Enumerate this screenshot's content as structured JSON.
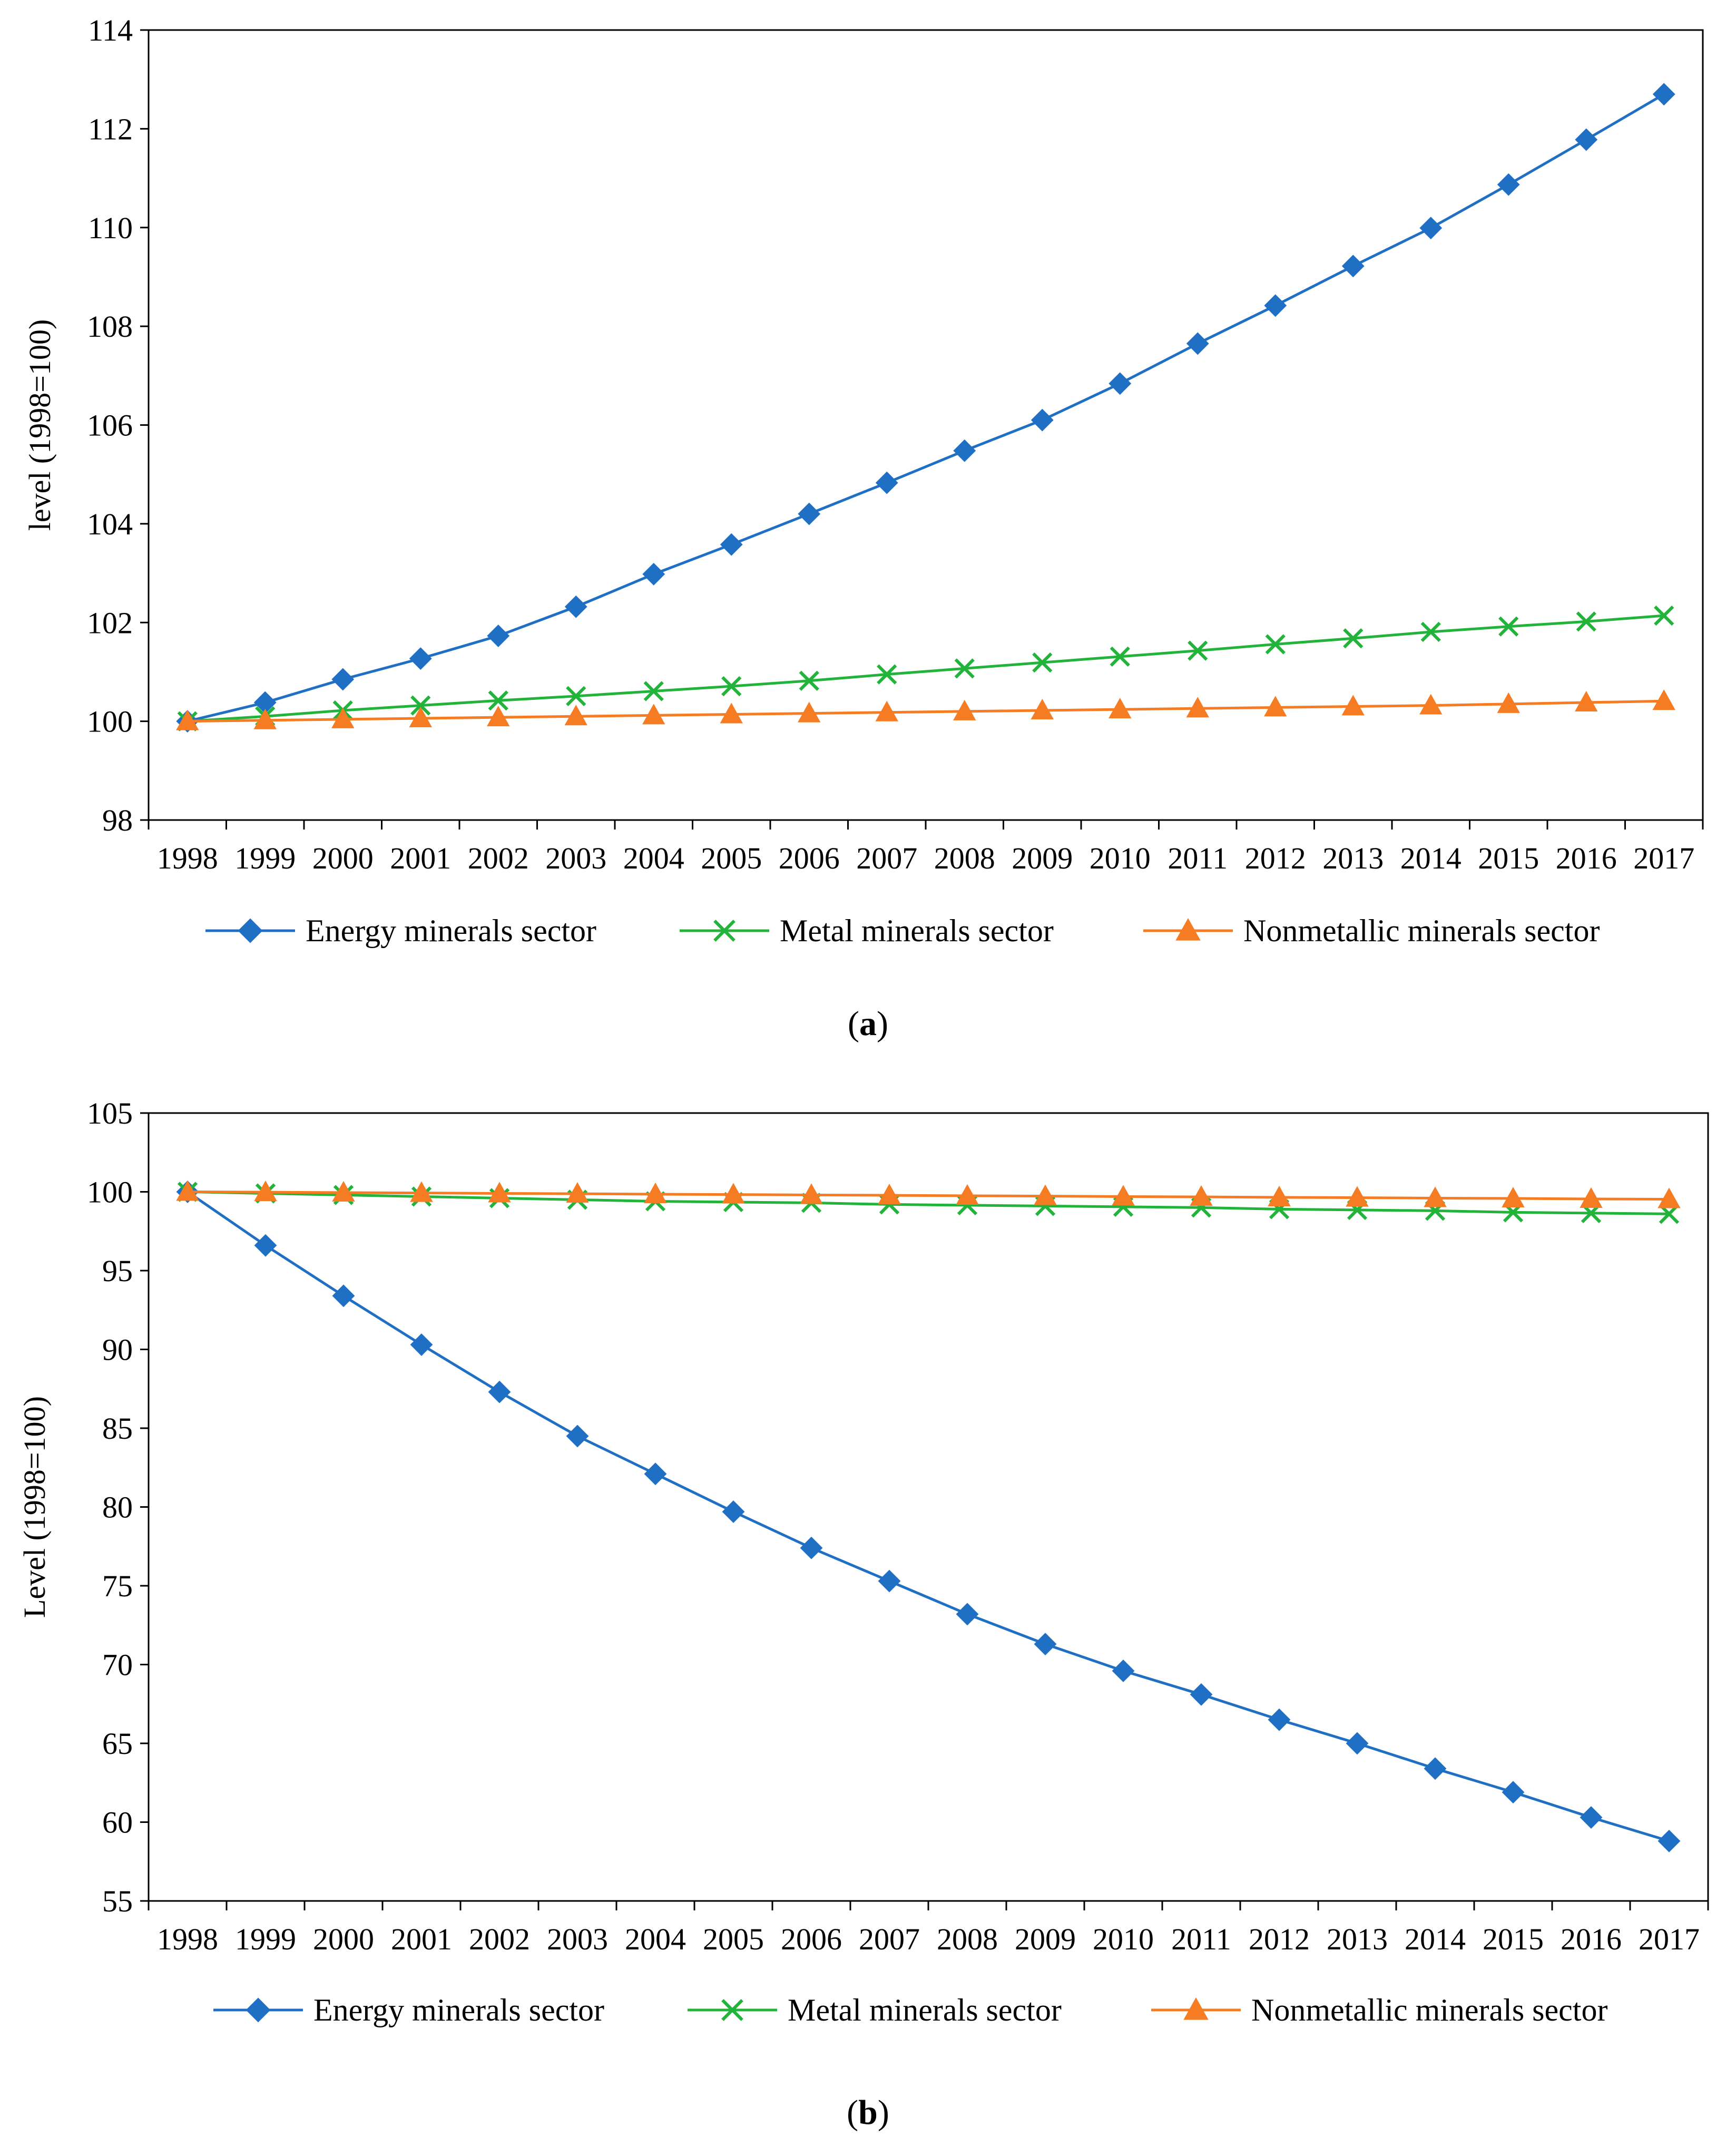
{
  "chart_data": [
    {
      "type": "line",
      "panel_label": "a",
      "ylabel": "level (1998=100)",
      "xlabel": "",
      "ylim": [
        98,
        114
      ],
      "yticks": [
        98,
        100,
        102,
        104,
        106,
        108,
        110,
        112,
        114
      ],
      "categories": [
        "1998",
        "1999",
        "2000",
        "2001",
        "2002",
        "2003",
        "2004",
        "2005",
        "2006",
        "2007",
        "2008",
        "2009",
        "2010",
        "2011",
        "2012",
        "2013",
        "2014",
        "2015",
        "2016",
        "2017"
      ],
      "legend_position": "bottom",
      "series": [
        {
          "name": "Energy minerals sector",
          "color": "#1f6fc5",
          "marker": "diamond",
          "values": [
            100.0,
            100.38,
            100.85,
            101.27,
            101.73,
            102.32,
            102.98,
            103.58,
            104.2,
            104.83,
            105.48,
            106.1,
            106.84,
            107.65,
            108.42,
            109.22,
            109.99,
            110.87,
            111.78,
            112.7
          ]
        },
        {
          "name": "Metal minerals sector",
          "color": "#22b33a",
          "marker": "x",
          "values": [
            100.0,
            100.1,
            100.22,
            100.32,
            100.42,
            100.51,
            100.61,
            100.71,
            100.82,
            100.95,
            101.07,
            101.19,
            101.31,
            101.43,
            101.56,
            101.68,
            101.81,
            101.92,
            102.02,
            102.14
          ]
        },
        {
          "name": "Nonmetallic minerals sector",
          "color": "#f57c22",
          "marker": "triangle",
          "values": [
            100.0,
            100.02,
            100.04,
            100.06,
            100.08,
            100.1,
            100.12,
            100.14,
            100.16,
            100.18,
            100.2,
            100.22,
            100.24,
            100.26,
            100.28,
            100.3,
            100.32,
            100.35,
            100.38,
            100.41
          ]
        }
      ]
    },
    {
      "type": "line",
      "panel_label": "b",
      "ylabel": "Level (1998=100)",
      "xlabel": "",
      "ylim": [
        55,
        105
      ],
      "yticks": [
        55,
        60,
        65,
        70,
        75,
        80,
        85,
        90,
        95,
        100,
        105
      ],
      "categories": [
        "1998",
        "1999",
        "2000",
        "2001",
        "2002",
        "2003",
        "2004",
        "2005",
        "2006",
        "2007",
        "2008",
        "2009",
        "2010",
        "2011",
        "2012",
        "2013",
        "2014",
        "2015",
        "2016",
        "2017"
      ],
      "legend_position": "bottom",
      "series": [
        {
          "name": "Energy minerals sector",
          "color": "#1f6fc5",
          "marker": "diamond",
          "values": [
            100.0,
            96.6,
            93.4,
            90.3,
            87.3,
            84.5,
            82.1,
            79.7,
            77.4,
            75.3,
            73.2,
            71.3,
            69.6,
            68.1,
            66.5,
            65.0,
            63.4,
            61.9,
            60.3,
            58.8
          ]
        },
        {
          "name": "Metal minerals sector",
          "color": "#22b33a",
          "marker": "x",
          "values": [
            100.0,
            99.9,
            99.8,
            99.7,
            99.6,
            99.5,
            99.4,
            99.35,
            99.3,
            99.2,
            99.15,
            99.1,
            99.05,
            99.0,
            98.9,
            98.85,
            98.8,
            98.7,
            98.65,
            98.6
          ]
        },
        {
          "name": "Nonmetallic minerals sector",
          "color": "#f57c22",
          "marker": "triangle",
          "values": [
            100.0,
            99.98,
            99.95,
            99.93,
            99.9,
            99.88,
            99.85,
            99.83,
            99.8,
            99.78,
            99.75,
            99.73,
            99.7,
            99.68,
            99.65,
            99.63,
            99.6,
            99.58,
            99.55,
            99.53
          ]
        }
      ]
    }
  ]
}
